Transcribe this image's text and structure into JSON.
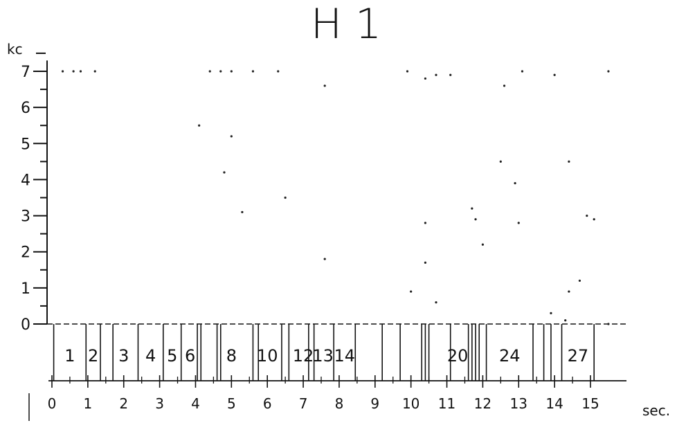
{
  "chart_data": {
    "type": "timeline",
    "title": "H 1",
    "ylabel": "kc",
    "xlabel": "sec.",
    "ylim": [
      0,
      7
    ],
    "xlim": [
      0,
      15.8
    ],
    "y_ticks": [
      0,
      1,
      2,
      3,
      4,
      5,
      6,
      7
    ],
    "x_ticks": [
      0,
      1,
      2,
      3,
      4,
      5,
      6,
      7,
      8,
      9,
      10,
      11,
      12,
      13,
      14,
      15
    ],
    "x_tick_labels": [
      "0",
      "1",
      "2",
      "3",
      "4",
      "5",
      "6",
      "7",
      "8",
      "9",
      "10",
      "11",
      "12",
      "13",
      "14",
      "15"
    ],
    "y_tick_labels": [
      "0",
      "1",
      "2",
      "3",
      "4",
      "5",
      "6",
      "7"
    ],
    "segment_boundaries": [
      0.05,
      0.95,
      1.35,
      1.7,
      2.4,
      3.1,
      3.6,
      4.05,
      4.15,
      4.6,
      4.7,
      5.6,
      5.75,
      6.4,
      6.6,
      7.15,
      7.3,
      7.85,
      8.45,
      9.2,
      9.7,
      10.3,
      10.4,
      10.5,
      11.1,
      11.6,
      11.7,
      11.8,
      11.9,
      12.1,
      13.4,
      13.7,
      13.9,
      14.2,
      15.1
    ],
    "segment_labels": [
      {
        "label": "1",
        "x": 0.5
      },
      {
        "label": "2",
        "x": 1.15
      },
      {
        "label": "3",
        "x": 2.0
      },
      {
        "label": "4",
        "x": 2.75
      },
      {
        "label": "5",
        "x": 3.35
      },
      {
        "label": "6",
        "x": 3.85
      },
      {
        "label": "8",
        "x": 5.0
      },
      {
        "label": "10",
        "x": 6.0
      },
      {
        "label": "12",
        "x": 7.0
      },
      {
        "label": "13",
        "x": 7.55
      },
      {
        "label": "14",
        "x": 8.15
      },
      {
        "label": "20",
        "x": 11.3
      },
      {
        "label": "24",
        "x": 12.75
      },
      {
        "label": "27",
        "x": 14.65
      }
    ],
    "scatter_points": [
      {
        "x": 0.3,
        "y": 7.0
      },
      {
        "x": 0.6,
        "y": 7.0
      },
      {
        "x": 0.8,
        "y": 7.0
      },
      {
        "x": 1.2,
        "y": 7.0
      },
      {
        "x": 4.4,
        "y": 7.0
      },
      {
        "x": 4.7,
        "y": 7.0
      },
      {
        "x": 5.0,
        "y": 7.0
      },
      {
        "x": 5.6,
        "y": 7.0
      },
      {
        "x": 6.3,
        "y": 7.0
      },
      {
        "x": 7.6,
        "y": 6.6
      },
      {
        "x": 9.9,
        "y": 7.0
      },
      {
        "x": 10.4,
        "y": 6.8
      },
      {
        "x": 10.7,
        "y": 6.9
      },
      {
        "x": 11.1,
        "y": 6.9
      },
      {
        "x": 12.6,
        "y": 6.6
      },
      {
        "x": 13.1,
        "y": 7.0
      },
      {
        "x": 14.0,
        "y": 6.9
      },
      {
        "x": 15.5,
        "y": 7.0
      },
      {
        "x": 4.1,
        "y": 5.5
      },
      {
        "x": 5.0,
        "y": 5.2
      },
      {
        "x": 4.8,
        "y": 4.2
      },
      {
        "x": 12.5,
        "y": 4.5
      },
      {
        "x": 12.9,
        "y": 3.9
      },
      {
        "x": 14.4,
        "y": 4.5
      },
      {
        "x": 6.5,
        "y": 3.5
      },
      {
        "x": 5.3,
        "y": 3.1
      },
      {
        "x": 11.7,
        "y": 3.2
      },
      {
        "x": 11.8,
        "y": 2.9
      },
      {
        "x": 13.0,
        "y": 2.8
      },
      {
        "x": 14.9,
        "y": 3.0
      },
      {
        "x": 15.1,
        "y": 2.9
      },
      {
        "x": 10.4,
        "y": 2.8
      },
      {
        "x": 12.0,
        "y": 2.2
      },
      {
        "x": 10.4,
        "y": 1.7
      },
      {
        "x": 7.6,
        "y": 1.8
      },
      {
        "x": 14.7,
        "y": 1.2
      },
      {
        "x": 14.4,
        "y": 0.9
      },
      {
        "x": 10.0,
        "y": 0.9
      },
      {
        "x": 10.7,
        "y": 0.6
      },
      {
        "x": 13.9,
        "y": 0.3
      },
      {
        "x": 14.3,
        "y": 0.1
      },
      {
        "x": 15.5,
        "y": 0.0
      }
    ]
  }
}
